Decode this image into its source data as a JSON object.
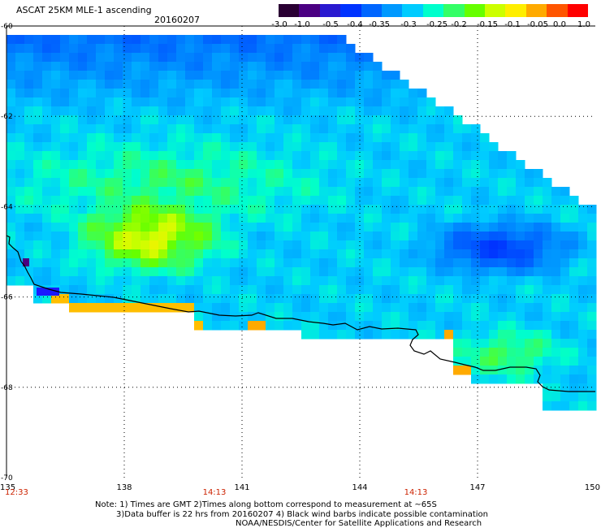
{
  "header": {
    "title": "ASCAT 25KM MLE-1 ascending",
    "date": "20160207"
  },
  "colorbar": {
    "labels": [
      "-3.0",
      "-1.0",
      "-0.5",
      "-0.4",
      "-0.35",
      "-0.3",
      "-0.25",
      "-0.2",
      "-0.15",
      "-0.1",
      "-0.05",
      "0.0",
      "1.0"
    ],
    "colors": [
      "#2a0033",
      "#4b0082",
      "#2a1ad0",
      "#0033ff",
      "#0066ff",
      "#0099ff",
      "#00ccff",
      "#00ffcc",
      "#33ff66",
      "#66ff00",
      "#ccff00",
      "#ffee00",
      "#ffaa00",
      "#ff5500",
      "#ff0000"
    ]
  },
  "map": {
    "lat_labels": [
      "-60",
      "-62",
      "-64",
      "-66",
      "-68",
      "-70"
    ],
    "lon_labels": [
      "135",
      "138",
      "141",
      "144",
      "147",
      "150"
    ],
    "time_labels": [
      "12:33",
      "14:13",
      "14:13"
    ],
    "lon_range": [
      135,
      150
    ],
    "lat_range": [
      -70,
      -60
    ],
    "coast_color": "#000000"
  },
  "footer": {
    "note1": "Note: 1) Times are GMT 2)Times along bottom correspond to measurement at ~65S",
    "note2": "3)Data buffer is 22 hrs from 20160207 4) Black wind barbs indicate possible contamination",
    "credit": "NOAA/NESDIS/Center for Satellite Applications and Research"
  }
}
